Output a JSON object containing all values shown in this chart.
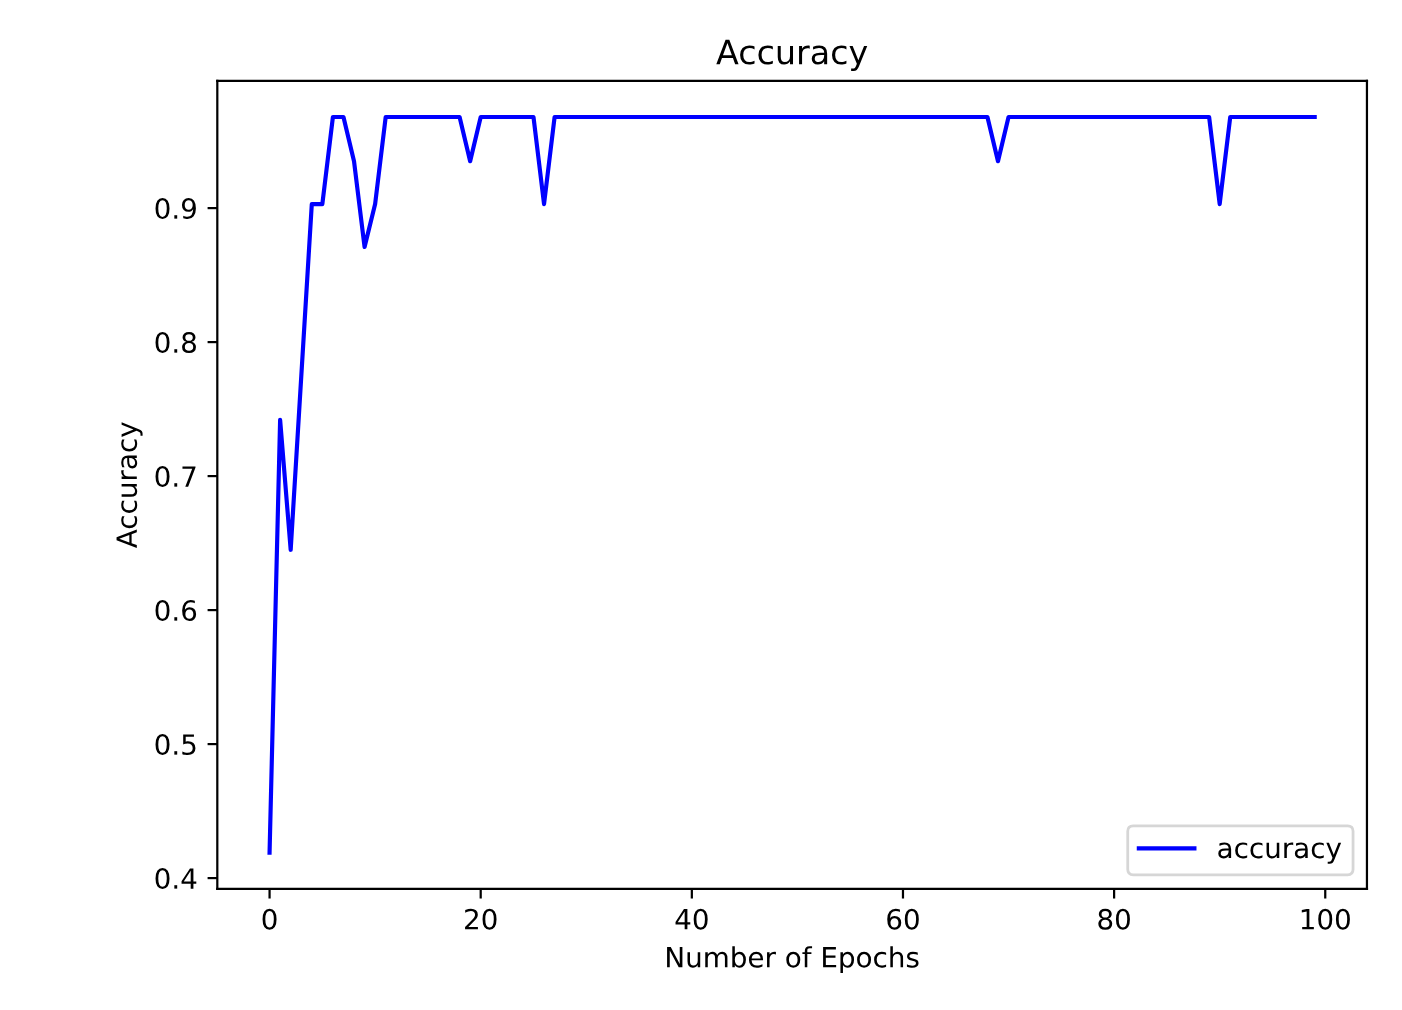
{
  "chart_data": {
    "type": "line",
    "title": "Accuracy",
    "xlabel": "Number of Epochs",
    "ylabel": "Accuracy",
    "x": [
      0,
      1,
      2,
      3,
      4,
      5,
      6,
      7,
      8,
      9,
      10,
      11,
      12,
      13,
      14,
      15,
      16,
      17,
      18,
      19,
      20,
      21,
      22,
      23,
      24,
      25,
      26,
      27,
      28,
      29,
      30,
      31,
      32,
      33,
      34,
      35,
      36,
      37,
      38,
      39,
      40,
      41,
      42,
      43,
      44,
      45,
      46,
      47,
      48,
      49,
      50,
      51,
      52,
      53,
      54,
      55,
      56,
      57,
      58,
      59,
      60,
      61,
      62,
      63,
      64,
      65,
      66,
      67,
      68,
      69,
      70,
      71,
      72,
      73,
      74,
      75,
      76,
      77,
      78,
      79,
      80,
      81,
      82,
      83,
      84,
      85,
      86,
      87,
      88,
      89,
      90,
      91,
      92,
      93,
      94,
      95,
      96,
      97,
      98,
      99
    ],
    "series": [
      {
        "name": "accuracy",
        "color": "#0000ff",
        "values": [
          0.419,
          0.742,
          0.645,
          0.774,
          0.903,
          0.903,
          0.968,
          0.968,
          0.935,
          0.871,
          0.903,
          0.968,
          0.968,
          0.968,
          0.968,
          0.968,
          0.968,
          0.968,
          0.968,
          0.935,
          0.968,
          0.968,
          0.968,
          0.968,
          0.968,
          0.968,
          0.903,
          0.968,
          0.968,
          0.968,
          0.968,
          0.968,
          0.968,
          0.968,
          0.968,
          0.968,
          0.968,
          0.968,
          0.968,
          0.968,
          0.968,
          0.968,
          0.968,
          0.968,
          0.968,
          0.968,
          0.968,
          0.968,
          0.968,
          0.968,
          0.968,
          0.968,
          0.968,
          0.968,
          0.968,
          0.968,
          0.968,
          0.968,
          0.968,
          0.968,
          0.968,
          0.968,
          0.968,
          0.968,
          0.968,
          0.968,
          0.968,
          0.968,
          0.968,
          0.935,
          0.968,
          0.968,
          0.968,
          0.968,
          0.968,
          0.968,
          0.968,
          0.968,
          0.968,
          0.968,
          0.968,
          0.968,
          0.968,
          0.968,
          0.968,
          0.968,
          0.968,
          0.968,
          0.968,
          0.968,
          0.903,
          0.968,
          0.968,
          0.968,
          0.968,
          0.968,
          0.968,
          0.968,
          0.968,
          0.968
        ]
      }
    ],
    "xlim": [
      -4.95,
      103.95
    ],
    "xticks": [
      0,
      20,
      40,
      60,
      80,
      100
    ],
    "ylim": [
      0.392,
      0.995
    ],
    "yticks": [
      0.4,
      0.5,
      0.6,
      0.7,
      0.8,
      0.9
    ],
    "legend": "bottom right",
    "grid": false,
    "marker": "none",
    "line_style": "solid"
  }
}
